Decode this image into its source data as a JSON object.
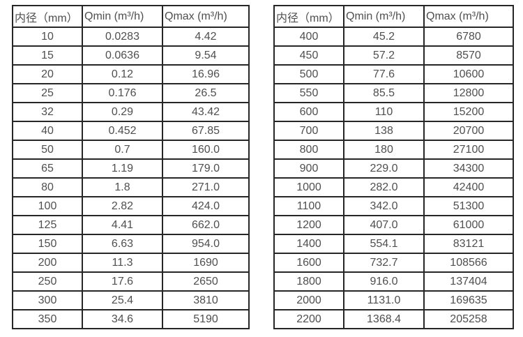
{
  "colors": {
    "background": "#ffffff",
    "table_border": "#262626",
    "text": "#4f4f4f"
  },
  "tables": [
    {
      "name": "flow-rate-table-dn10-350",
      "headers": [
        "内径（mm）",
        "Qmin (m³/h)",
        "Qmax (m³/h)"
      ],
      "rows": [
        [
          "10",
          "0.0283",
          "4.42"
        ],
        [
          "15",
          "0.0636",
          "9.54"
        ],
        [
          "20",
          "0.12",
          "16.96"
        ],
        [
          "25",
          "0.176",
          "26.5"
        ],
        [
          "32",
          "0.29",
          "43.42"
        ],
        [
          "40",
          "0.452",
          "67.85"
        ],
        [
          "50",
          "0.7",
          "160.0"
        ],
        [
          "65",
          "1.19",
          "179.0"
        ],
        [
          "80",
          "1.8",
          "271.0"
        ],
        [
          "100",
          "2.82",
          "424.0"
        ],
        [
          "125",
          "4.41",
          "662.0"
        ],
        [
          "150",
          "6.63",
          "954.0"
        ],
        [
          "200",
          "11.3",
          "1690"
        ],
        [
          "250",
          "17.6",
          "2650"
        ],
        [
          "300",
          "25.4",
          "3810"
        ],
        [
          "350",
          "34.6",
          "5190"
        ]
      ]
    },
    {
      "name": "flow-rate-table-dn400-2200",
      "headers": [
        "内径（mm）",
        "Qmin (m³/h)",
        "Qmax (m³/h)"
      ],
      "rows": [
        [
          "400",
          "45.2",
          "6780"
        ],
        [
          "450",
          "57.2",
          "8570"
        ],
        [
          "500",
          "77.6",
          "10600"
        ],
        [
          "550",
          "85.5",
          "12800"
        ],
        [
          "600",
          "110",
          "15200"
        ],
        [
          "700",
          "138",
          "20700"
        ],
        [
          "800",
          "180",
          "27100"
        ],
        [
          "900",
          "229.0",
          "34300"
        ],
        [
          "1000",
          "282.0",
          "42400"
        ],
        [
          "1100",
          "342.0",
          "51300"
        ],
        [
          "1200",
          "407.0",
          "61000"
        ],
        [
          "1400",
          "554.1",
          "83121"
        ],
        [
          "1600",
          "732.7",
          "108566"
        ],
        [
          "1800",
          "916.0",
          "137404"
        ],
        [
          "2000",
          "1131.0",
          "169635"
        ],
        [
          "2200",
          "1368.4",
          "205258"
        ]
      ]
    }
  ]
}
